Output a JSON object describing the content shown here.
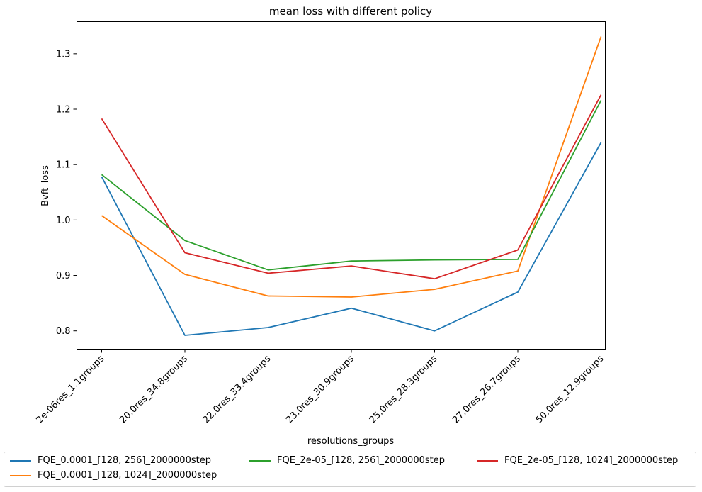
{
  "chart_data": {
    "type": "line",
    "title": "mean loss with different policy",
    "xlabel": "resolutions_groups",
    "ylabel": "Bvft_loss",
    "categories": [
      "2e-06res_1.1groups",
      "20.0res_34.8groups",
      "22.0res_33.4groups",
      "23.0res_30.9groups",
      "25.0res_28.3groups",
      "27.0res_26.7groups",
      "50.0res_12.9groups"
    ],
    "ylim": [
      0.767,
      1.358
    ],
    "yticks": [
      0.8,
      0.9,
      1.0,
      1.1,
      1.2,
      1.3
    ],
    "ytick_labels": [
      "0.8",
      "0.9",
      "1.0",
      "1.1",
      "1.2",
      "1.3"
    ],
    "grid": false,
    "legend_position": "below",
    "series": [
      {
        "name": "FQE_0.0001_[128, 256]_2000000step",
        "color": "#1f77b4",
        "values": [
          1.078,
          0.792,
          0.806,
          0.841,
          0.8,
          0.87,
          1.14
        ]
      },
      {
        "name": "FQE_0.0001_[128, 1024]_2000000step",
        "color": "#ff7f0e",
        "values": [
          1.008,
          0.902,
          0.863,
          0.861,
          0.875,
          0.908,
          1.331
        ]
      },
      {
        "name": "FQE_2e-05_[128, 256]_2000000step",
        "color": "#2ca02c",
        "values": [
          1.082,
          0.963,
          0.91,
          0.926,
          0.928,
          0.929,
          1.216
        ]
      },
      {
        "name": "FQE_2e-05_[128, 1024]_2000000step",
        "color": "#d62728",
        "values": [
          1.183,
          0.941,
          0.904,
          0.917,
          0.894,
          0.946,
          1.226
        ]
      }
    ]
  }
}
